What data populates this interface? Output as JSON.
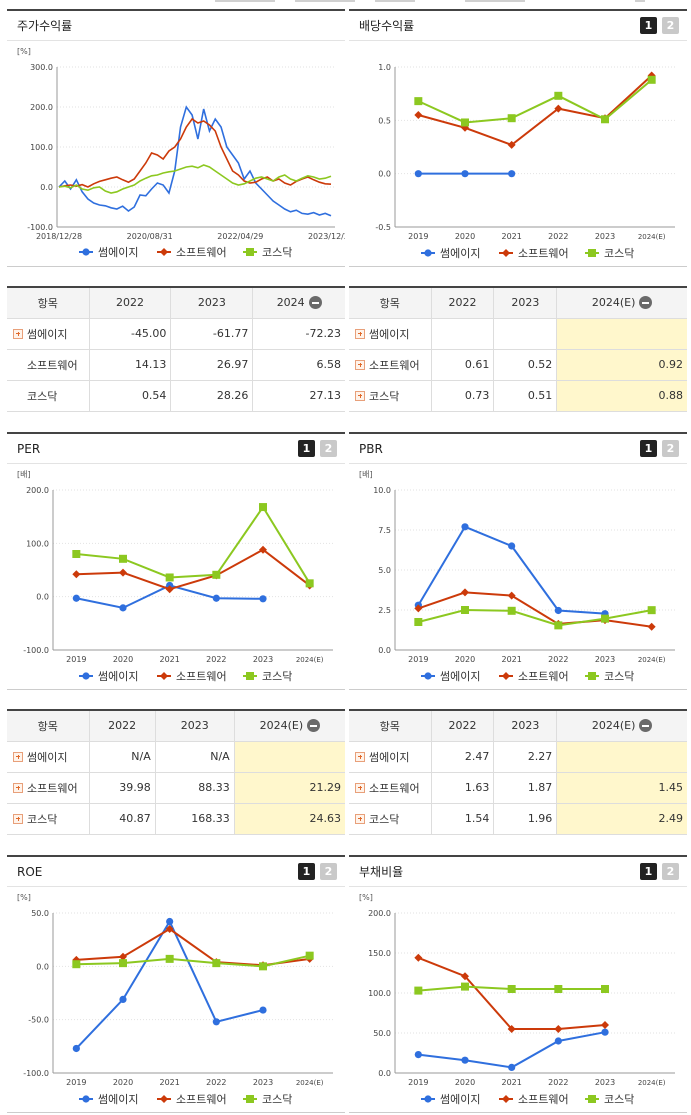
{
  "colors": {
    "ssum": "#2f6fde",
    "soft": "#cc3a0a",
    "kosdaq": "#8cc820"
  },
  "icons": [
    "page-1-icon",
    "page-2-icon",
    "collapse-minus-icon",
    "expand-plus-icon",
    "circle-marker-icon",
    "diamond-marker-icon",
    "square-marker-icon"
  ],
  "legend": {
    "s1": "썸에이지",
    "s2": "소프트웨어",
    "s3": "코스닥"
  },
  "pager": {
    "p1": "1",
    "p2": "2"
  },
  "panels": {
    "stock": {
      "title": "주가수익률",
      "unit": "[%]"
    },
    "div": {
      "title": "배당수익률"
    },
    "per": {
      "title": "PER",
      "unit": "[배]"
    },
    "pbr": {
      "title": "PBR",
      "unit": "[배]"
    },
    "roe": {
      "title": "ROE",
      "unit": "[%]"
    },
    "debt": {
      "title": "부채비율",
      "unit": "[%]"
    }
  },
  "tables": {
    "stock": {
      "h0": "항목",
      "h1": "2022",
      "h2": "2023",
      "h3": "2024",
      "rows": [
        [
          "썸에이지",
          "-45.00",
          "-61.77",
          "-72.23"
        ],
        [
          "소프트웨어",
          "14.13",
          "26.97",
          "6.58"
        ],
        [
          "코스닥",
          "0.54",
          "28.26",
          "27.13"
        ]
      ]
    },
    "div": {
      "h0": "항목",
      "h1": "2022",
      "h2": "2023",
      "h3": "2024(E)",
      "rows": [
        [
          "썸에이지",
          "",
          "",
          ""
        ],
        [
          "소프트웨어",
          "0.61",
          "0.52",
          "0.92"
        ],
        [
          "코스닥",
          "0.73",
          "0.51",
          "0.88"
        ]
      ]
    },
    "per": {
      "h0": "항목",
      "h1": "2022",
      "h2": "2023",
      "h3": "2024(E)",
      "rows": [
        [
          "썸에이지",
          "N/A",
          "N/A",
          ""
        ],
        [
          "소프트웨어",
          "39.98",
          "88.33",
          "21.29"
        ],
        [
          "코스닥",
          "40.87",
          "168.33",
          "24.63"
        ]
      ]
    },
    "pbr": {
      "h0": "항목",
      "h1": "2022",
      "h2": "2023",
      "h3": "2024(E)",
      "rows": [
        [
          "썸에이지",
          "2.47",
          "2.27",
          ""
        ],
        [
          "소프트웨어",
          "1.63",
          "1.87",
          "1.45"
        ],
        [
          "코스닥",
          "1.54",
          "1.96",
          "2.49"
        ]
      ]
    }
  },
  "chart_data": [
    {
      "id": "stock",
      "type": "line",
      "title": "주가수익률",
      "ylabel": "[%]",
      "ylim": [
        -100,
        300
      ],
      "yticks": [
        "300.0",
        "200.0",
        "100.0",
        "0.0",
        "-100.0"
      ],
      "xticks": [
        "2018/12/28",
        "2020/08/31",
        "2022/04/29",
        "2023/12/28"
      ],
      "series": [
        {
          "name": "썸에이지",
          "values": [
            0,
            15,
            -5,
            18,
            -12,
            -30,
            -40,
            -45,
            -47,
            -52,
            -55,
            -48,
            -60,
            -50,
            -20,
            -22,
            -5,
            10,
            5,
            -15,
            40,
            150,
            200,
            180,
            120,
            195,
            140,
            170,
            150,
            100,
            80,
            60,
            20,
            40,
            10,
            -5,
            -20,
            -35,
            -45,
            -55,
            -62,
            -58,
            -66,
            -68,
            -64,
            -70,
            -66,
            -72
          ]
        },
        {
          "name": "소프트웨어",
          "values": [
            0,
            3,
            5,
            2,
            6,
            0,
            8,
            14,
            18,
            22,
            25,
            18,
            12,
            20,
            40,
            60,
            85,
            80,
            70,
            90,
            100,
            120,
            150,
            170,
            160,
            165,
            155,
            140,
            100,
            70,
            40,
            30,
            15,
            10,
            12,
            20,
            25,
            15,
            20,
            10,
            5,
            14,
            20,
            25,
            18,
            12,
            8,
            7
          ]
        },
        {
          "name": "코스닥",
          "values": [
            0,
            2,
            -2,
            5,
            -5,
            -8,
            -2,
            0,
            -10,
            -15,
            -12,
            -5,
            0,
            5,
            15,
            22,
            28,
            30,
            35,
            38,
            40,
            45,
            50,
            52,
            48,
            55,
            50,
            40,
            30,
            20,
            10,
            5,
            8,
            15,
            22,
            25,
            20,
            15,
            25,
            30,
            20,
            15,
            22,
            28,
            25,
            20,
            22,
            27
          ]
        }
      ]
    },
    {
      "id": "div",
      "type": "line",
      "title": "배당수익률",
      "ylim": [
        -0.5,
        1.0
      ],
      "yticks": [
        "1.0",
        "0.5",
        "0.0",
        "-0.5"
      ],
      "categories": [
        "2019",
        "2020",
        "2021",
        "2022",
        "2023",
        "2024(E)"
      ],
      "series": [
        {
          "name": "썸에이지",
          "values": [
            0,
            0,
            0,
            null,
            null,
            null
          ]
        },
        {
          "name": "소프트웨어",
          "values": [
            0.55,
            0.43,
            0.27,
            0.61,
            0.52,
            0.92
          ]
        },
        {
          "name": "코스닥",
          "values": [
            0.68,
            0.48,
            0.52,
            0.73,
            0.51,
            0.88
          ]
        }
      ]
    },
    {
      "id": "per",
      "type": "line",
      "title": "PER",
      "ylabel": "[배]",
      "ylim": [
        -100,
        200
      ],
      "yticks": [
        "200.0",
        "100.0",
        "0.0",
        "-100.0"
      ],
      "categories": [
        "2019",
        "2020",
        "2021",
        "2022",
        "2023",
        "2024(E)"
      ],
      "series": [
        {
          "name": "썸에이지",
          "values": [
            -3,
            -21,
            21,
            -3,
            -4,
            null
          ]
        },
        {
          "name": "소프트웨어",
          "values": [
            42,
            45,
            14,
            40,
            88,
            21
          ]
        },
        {
          "name": "코스닥",
          "values": [
            80,
            71,
            36,
            41,
            168,
            25
          ]
        }
      ]
    },
    {
      "id": "pbr",
      "type": "line",
      "title": "PBR",
      "ylabel": "[배]",
      "ylim": [
        0,
        10
      ],
      "yticks": [
        "10.0",
        "7.5",
        "5.0",
        "2.5",
        "0.0"
      ],
      "categories": [
        "2019",
        "2020",
        "2021",
        "2022",
        "2023",
        "2024(E)"
      ],
      "series": [
        {
          "name": "썸에이지",
          "values": [
            2.8,
            7.7,
            6.5,
            2.47,
            2.27,
            null
          ]
        },
        {
          "name": "소프트웨어",
          "values": [
            2.6,
            3.6,
            3.4,
            1.63,
            1.87,
            1.45
          ]
        },
        {
          "name": "코스닥",
          "values": [
            1.75,
            2.5,
            2.45,
            1.54,
            1.96,
            2.49
          ]
        }
      ]
    },
    {
      "id": "roe",
      "type": "line",
      "title": "ROE",
      "ylabel": "[%]",
      "ylim": [
        -100,
        50
      ],
      "yticks": [
        "50.0",
        "0.0",
        "-50.0",
        "-100.0"
      ],
      "categories": [
        "2019",
        "2020",
        "2021",
        "2022",
        "2023",
        "2024(E)"
      ],
      "series": [
        {
          "name": "썸에이지",
          "values": [
            -77,
            -31,
            42,
            -52,
            -41,
            null
          ]
        },
        {
          "name": "소프트웨어",
          "values": [
            6,
            9,
            35,
            4,
            1,
            7
          ]
        },
        {
          "name": "코스닥",
          "values": [
            2,
            3,
            7,
            3,
            0,
            10
          ]
        }
      ]
    },
    {
      "id": "debt",
      "type": "line",
      "title": "부채비율",
      "ylabel": "[%]",
      "ylim": [
        0,
        200
      ],
      "yticks": [
        "200.0",
        "150.0",
        "100.0",
        "50.0",
        "0.0"
      ],
      "categories": [
        "2019",
        "2020",
        "2021",
        "2022",
        "2023",
        "2024(E)"
      ],
      "series": [
        {
          "name": "썸에이지",
          "values": [
            23,
            16,
            7,
            40,
            51,
            null
          ]
        },
        {
          "name": "소프트웨어",
          "values": [
            144,
            121,
            55,
            55,
            60,
            null
          ]
        },
        {
          "name": "코스닥",
          "values": [
            103,
            108,
            105,
            105,
            105,
            null
          ]
        }
      ]
    }
  ]
}
